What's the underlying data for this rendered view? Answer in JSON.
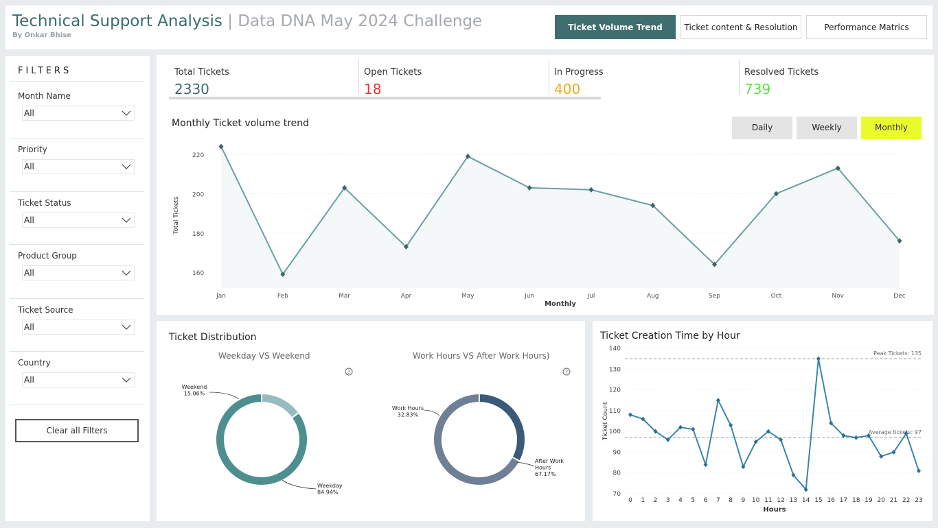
{
  "header": {
    "title_main": "Technical Support Analysis",
    "title_sep": " | ",
    "title_sub": "Data DNA May 2024 Challenge",
    "byline": "By Onkar Bhise",
    "nav": [
      {
        "label": "Ticket Volume Trend",
        "active": true
      },
      {
        "label": "Ticket content & Resolution",
        "active": false
      },
      {
        "label": "Performance Matrics",
        "active": false
      }
    ]
  },
  "filters": {
    "title": "FILTERS",
    "items": [
      {
        "label": "Month Name",
        "value": "All"
      },
      {
        "label": "Priority",
        "value": "All"
      },
      {
        "label": "Ticket Status",
        "value": "All"
      },
      {
        "label": "Product Group",
        "value": "All"
      },
      {
        "label": "Ticket Source",
        "value": "All"
      },
      {
        "label": "Country",
        "value": "All"
      }
    ],
    "clear_label": "Clear all Filters"
  },
  "kpis": [
    {
      "label": "Total Tickets",
      "value": "2330",
      "color": "#3b6b6e"
    },
    {
      "label": "Open Tickets",
      "value": "18",
      "color": "#e03a2f"
    },
    {
      "label": "In Progress",
      "value": "400",
      "color": "#f2a81d"
    },
    {
      "label": "Resolved Tickets",
      "value": "739",
      "color": "#5ee04a"
    }
  ],
  "trend": {
    "title": "Monthly Ticket volume trend",
    "period_buttons": [
      {
        "label": "Daily",
        "active": false
      },
      {
        "label": "Weekly",
        "active": false
      },
      {
        "label": "Monthly",
        "active": true
      }
    ]
  },
  "distribution": {
    "title": "Ticket Distribution",
    "donut1_title": "Weekday VS Weekend",
    "donut2_title": "Work Hours VS After Work Hours)"
  },
  "hourly": {
    "title": "Ticket Creation Time by Hour"
  },
  "chart_data": [
    {
      "type": "area",
      "title": "Monthly Ticket volume trend",
      "xlabel": "Monthly",
      "ylabel": "Total Tickets",
      "categories": [
        "Jan",
        "Feb",
        "Mar",
        "Apr",
        "May",
        "Jun",
        "Jul",
        "Aug",
        "Sep",
        "Oct",
        "Nov",
        "Dec"
      ],
      "values": [
        224,
        159,
        203,
        173,
        219,
        203,
        202,
        194,
        164,
        200,
        213,
        176
      ],
      "yticks": [
        160,
        180,
        200,
        220
      ],
      "ylim": [
        152,
        226
      ],
      "grid": true,
      "color": "#6a9fa2"
    },
    {
      "type": "pie",
      "title": "Weekday VS Weekend",
      "slices": [
        {
          "label": "Weekend",
          "pct_label": "15.06%",
          "value": 15.06,
          "color": "#97bcbf"
        },
        {
          "label": "Weekday",
          "pct_label": "84.94%",
          "value": 84.94,
          "color": "#4d8e8f"
        }
      ]
    },
    {
      "type": "pie",
      "title": "Work Hours VS After Work Hours)",
      "slices": [
        {
          "label": "Work Hours",
          "pct_label": "32.83%",
          "value": 32.83,
          "color": "#3c5a78"
        },
        {
          "label": "After Work Hours",
          "pct_label": "67.17%",
          "value": 67.17,
          "color": "#6e7f96"
        }
      ]
    },
    {
      "type": "line",
      "title": "Ticket Creation Time by Hour",
      "xlabel": "Hours",
      "ylabel": "Ticket Count",
      "x": [
        0,
        1,
        2,
        3,
        4,
        5,
        6,
        7,
        8,
        9,
        10,
        11,
        12,
        13,
        14,
        15,
        16,
        17,
        18,
        19,
        20,
        21,
        22,
        23
      ],
      "values": [
        108,
        106,
        100,
        96,
        102,
        101,
        84,
        115,
        103,
        83,
        95,
        100,
        96,
        79,
        72,
        135,
        104,
        98,
        97,
        98,
        88,
        90,
        99,
        81
      ],
      "yticks": [
        70,
        80,
        90,
        100,
        110,
        120,
        130,
        140
      ],
      "ylim": [
        70,
        140
      ],
      "reference_lines": [
        {
          "label": "Peak Tickets: 135",
          "value": 135
        },
        {
          "label": "Average tickets: 97",
          "value": 97
        }
      ],
      "grid": true,
      "color": "#3a85ac"
    }
  ]
}
